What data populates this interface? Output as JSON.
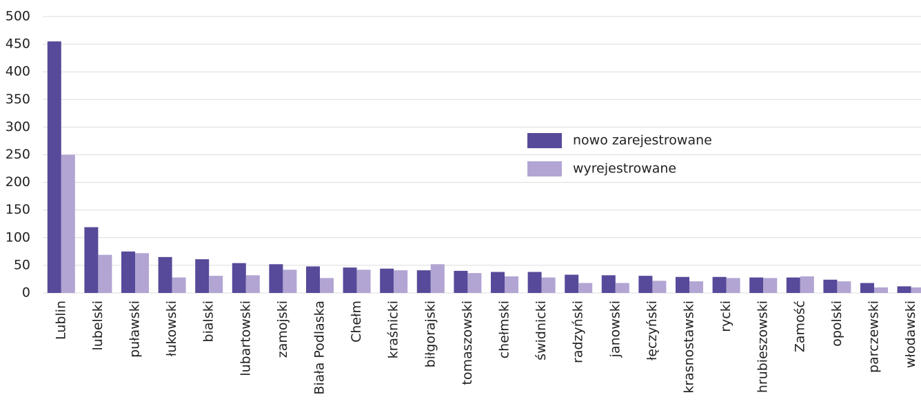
{
  "chart_data": {
    "type": "bar",
    "categories": [
      "Lublin",
      "lubelski",
      "puławski",
      "łukowski",
      "bialski",
      "lubartowski",
      "zamojski",
      "Biała Podlaska",
      "Chełm",
      "kraśnicki",
      "biłgorajski",
      "tomaszowski",
      "chełmski",
      "świdnicki",
      "radzyński",
      "janowski",
      "łęczyński",
      "krasnostawski",
      "rycki",
      "hrubieszowski",
      "Zamość",
      "opolski",
      "parczewski",
      "włodawski"
    ],
    "series": [
      {
        "name": "nowo zarejestrowane",
        "color": "#574a9a",
        "values": [
          455,
          119,
          75,
          65,
          61,
          54,
          52,
          48,
          46,
          44,
          41,
          40,
          38,
          38,
          33,
          32,
          31,
          29,
          29,
          28,
          28,
          24,
          18,
          12
        ]
      },
      {
        "name": "wyrejestrowane",
        "color": "#b2a5d3",
        "values": [
          250,
          69,
          72,
          28,
          31,
          32,
          42,
          27,
          42,
          41,
          52,
          36,
          30,
          28,
          18,
          18,
          22,
          21,
          27,
          27,
          30,
          21,
          10,
          10
        ]
      }
    ],
    "ylim": [
      0,
      500
    ],
    "yticks": [
      0,
      50,
      100,
      150,
      200,
      250,
      300,
      350,
      400,
      450,
      500
    ],
    "grid": true,
    "legend": "upper right"
  }
}
